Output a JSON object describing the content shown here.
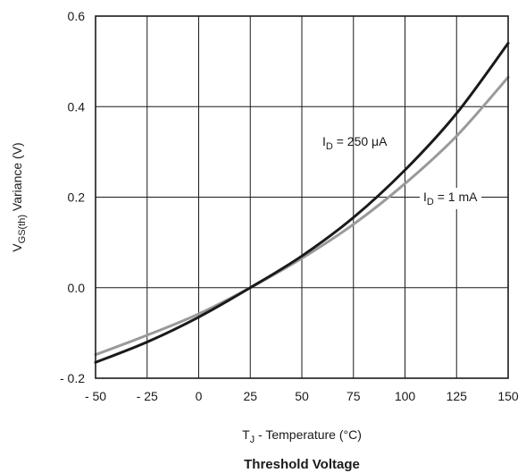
{
  "chart_data": {
    "type": "line",
    "title": "Threshold Voltage",
    "xlabel": {
      "main": "T",
      "sub": "J",
      "rest": " - Temperature (°C)"
    },
    "ylabel": {
      "main": "V",
      "sub": "GS(th)",
      "rest": " Variance (V)"
    },
    "xlim": [
      -50,
      150
    ],
    "ylim": [
      -0.2,
      0.6
    ],
    "x_ticks": [
      -50,
      -25,
      0,
      25,
      50,
      75,
      100,
      125,
      150
    ],
    "x_tick_labels": [
      "- 50",
      "- 25",
      "0",
      "25",
      "50",
      "75",
      "100",
      "125",
      "150"
    ],
    "y_ticks": [
      -0.2,
      0.0,
      0.2,
      0.4,
      0.6
    ],
    "y_tick_labels": [
      "- 0.2",
      "0.0",
      "0.2",
      "0.4",
      "0.6"
    ],
    "grid": true,
    "x": [
      -50,
      -25,
      0,
      25,
      50,
      75,
      100,
      125,
      150
    ],
    "series": [
      {
        "name": {
          "main": "I",
          "sub": "D",
          "rest": " = 250 μA"
        },
        "color": "#1a1a1a",
        "values": [
          -0.165,
          -0.12,
          -0.065,
          0.0,
          0.07,
          0.155,
          0.26,
          0.385,
          0.54
        ]
      },
      {
        "name": {
          "main": "I",
          "sub": "D",
          "rest": " = 1 mA"
        },
        "color": "#9a9a9a",
        "values": [
          -0.148,
          -0.105,
          -0.058,
          0.0,
          0.065,
          0.14,
          0.23,
          0.335,
          0.465
        ]
      }
    ]
  }
}
